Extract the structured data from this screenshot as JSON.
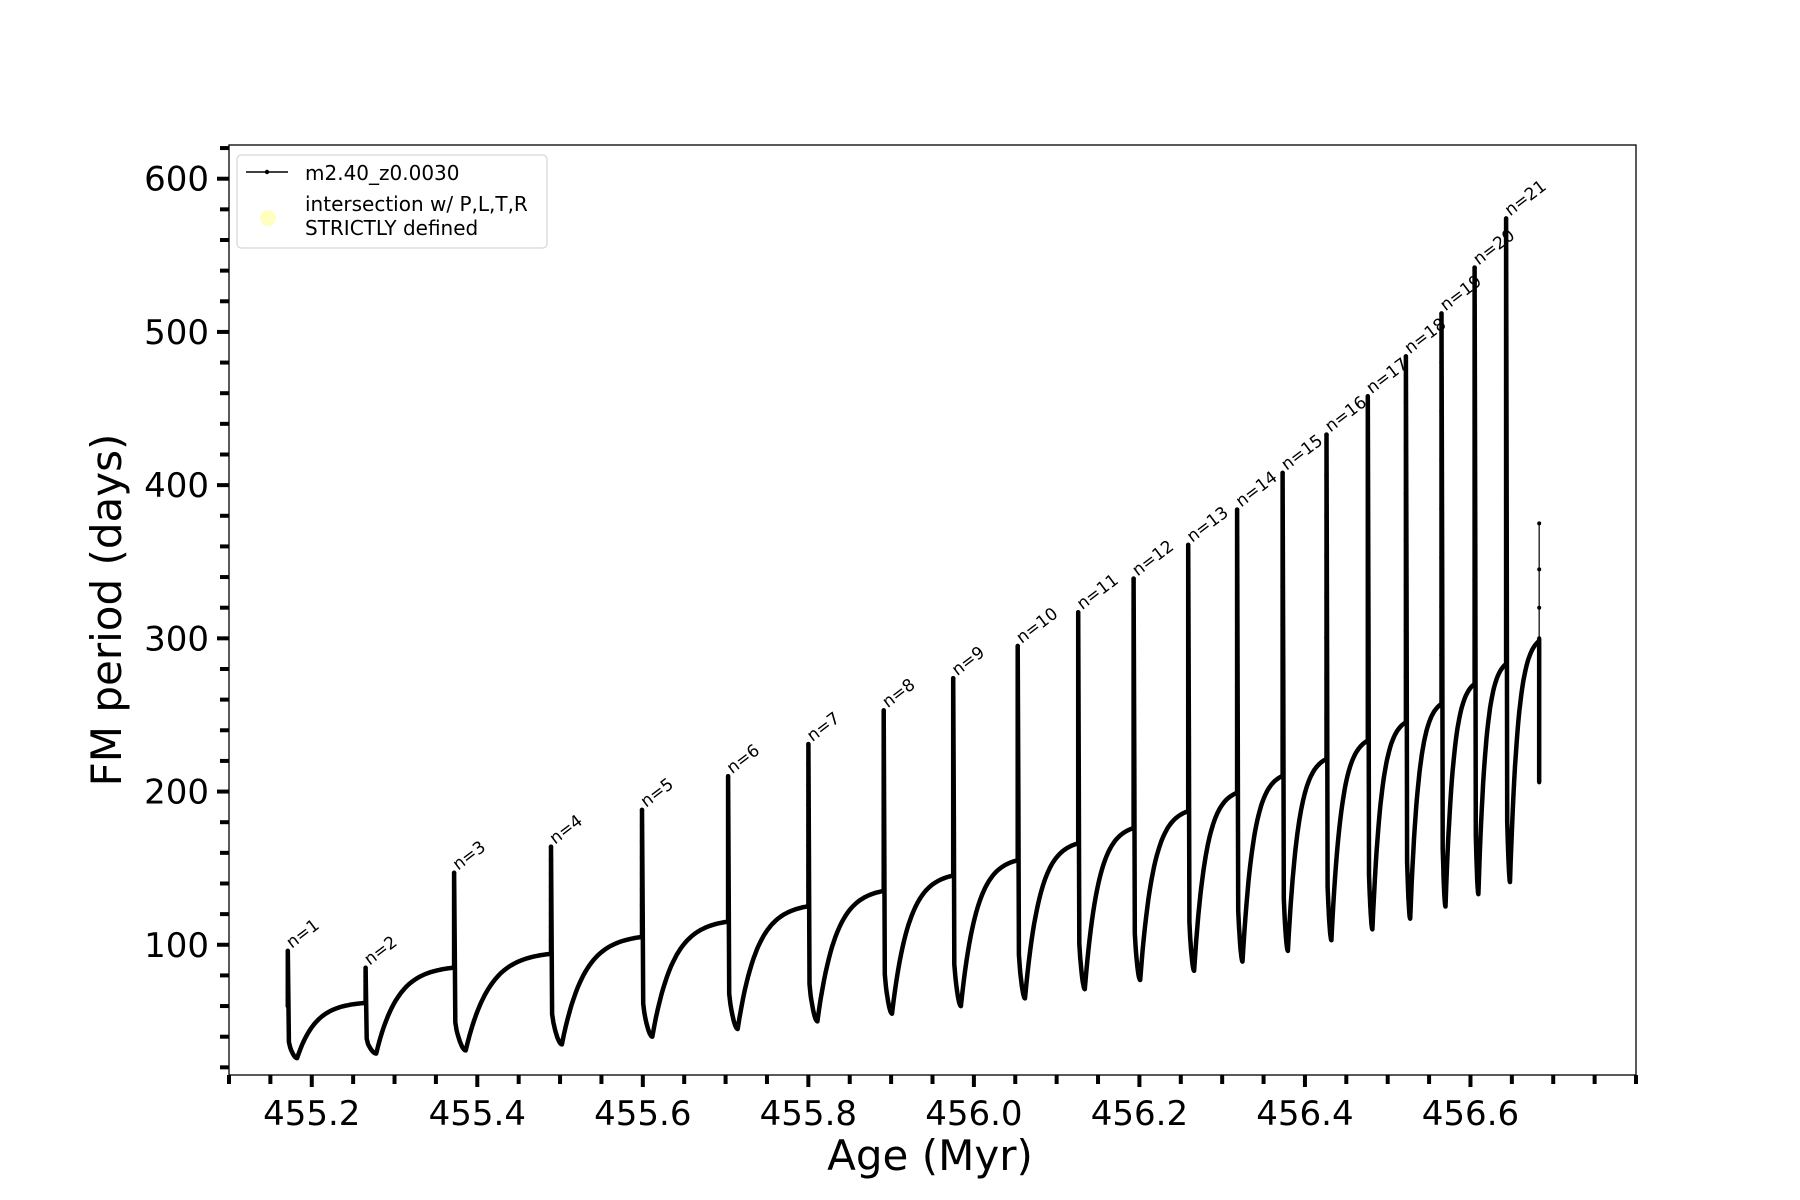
{
  "chart_data": {
    "type": "line",
    "xlabel": "Age (Myr)",
    "ylabel": "FM period (days)",
    "xlim": [
      455.1,
      456.8
    ],
    "ylim": [
      15,
      622
    ],
    "xticks": [
      455.2,
      455.4,
      455.6,
      455.8,
      456.0,
      456.2,
      456.4,
      456.6
    ],
    "xtick_labels": [
      "455.2",
      "455.4",
      "455.6",
      "455.8",
      "456.0",
      "456.2",
      "456.4",
      "456.6"
    ],
    "yticks": [
      100,
      200,
      300,
      400,
      500,
      600
    ],
    "ytick_labels": [
      "100",
      "200",
      "300",
      "400",
      "500",
      "600"
    ],
    "grid": false,
    "legend": {
      "placement": "upper-left",
      "entries": [
        {
          "label": "m2.40_z0.0030",
          "color": "#000000",
          "marker": "line-dot"
        },
        {
          "label_lines": [
            "intersection w/ P,L,T,R",
            "STRICTLY defined"
          ],
          "color": "#ffffc0",
          "marker": "circle"
        }
      ]
    },
    "series": [
      {
        "name": "m2.40_z0.0030",
        "color": "#000000",
        "pulses": [
          {
            "label": "n=1",
            "x": 455.171,
            "peak": 96,
            "min": 26,
            "plateau": 62
          },
          {
            "label": "n=2",
            "x": 455.265,
            "peak": 85,
            "min": 29,
            "plateau": 85
          },
          {
            "label": "n=3",
            "x": 455.372,
            "peak": 147,
            "min": 31,
            "plateau": 94
          },
          {
            "label": "n=4",
            "x": 455.489,
            "peak": 164,
            "min": 35,
            "plateau": 105
          },
          {
            "label": "n=5",
            "x": 455.599,
            "peak": 188,
            "min": 40,
            "plateau": 115
          },
          {
            "label": "n=6",
            "x": 455.703,
            "peak": 210,
            "min": 45,
            "plateau": 125
          },
          {
            "label": "n=7",
            "x": 455.8,
            "peak": 231,
            "min": 50,
            "plateau": 135
          },
          {
            "label": "n=8",
            "x": 455.891,
            "peak": 253,
            "min": 55,
            "plateau": 145
          },
          {
            "label": "n=9",
            "x": 455.975,
            "peak": 274,
            "min": 60,
            "plateau": 155
          },
          {
            "label": "n=10",
            "x": 456.053,
            "peak": 295,
            "min": 65,
            "plateau": 166
          },
          {
            "label": "n=11",
            "x": 456.126,
            "peak": 317,
            "min": 71,
            "plateau": 176
          },
          {
            "label": "n=12",
            "x": 456.193,
            "peak": 339,
            "min": 77,
            "plateau": 187
          },
          {
            "label": "n=13",
            "x": 456.259,
            "peak": 361,
            "min": 83,
            "plateau": 199
          },
          {
            "label": "n=14",
            "x": 456.318,
            "peak": 384,
            "min": 89,
            "plateau": 210
          },
          {
            "label": "n=15",
            "x": 456.373,
            "peak": 408,
            "min": 96,
            "plateau": 221
          },
          {
            "label": "n=16",
            "x": 456.426,
            "peak": 433,
            "min": 103,
            "plateau": 233
          },
          {
            "label": "n=17",
            "x": 456.476,
            "peak": 458,
            "min": 110,
            "plateau": 245
          },
          {
            "label": "n=18",
            "x": 456.522,
            "peak": 484,
            "min": 117,
            "plateau": 257
          },
          {
            "label": "n=19",
            "x": 456.565,
            "peak": 512,
            "min": 125,
            "plateau": 270
          },
          {
            "label": "n=20",
            "x": 456.605,
            "peak": 542,
            "min": 133,
            "plateau": 283
          },
          {
            "label": "n=21",
            "x": 456.643,
            "peak": 574,
            "min": 141,
            "plateau": 298
          }
        ],
        "last_age": 456.683,
        "tail_points": [
          375,
          345,
          320,
          300,
          290,
          270,
          250,
          230,
          206
        ]
      }
    ]
  }
}
